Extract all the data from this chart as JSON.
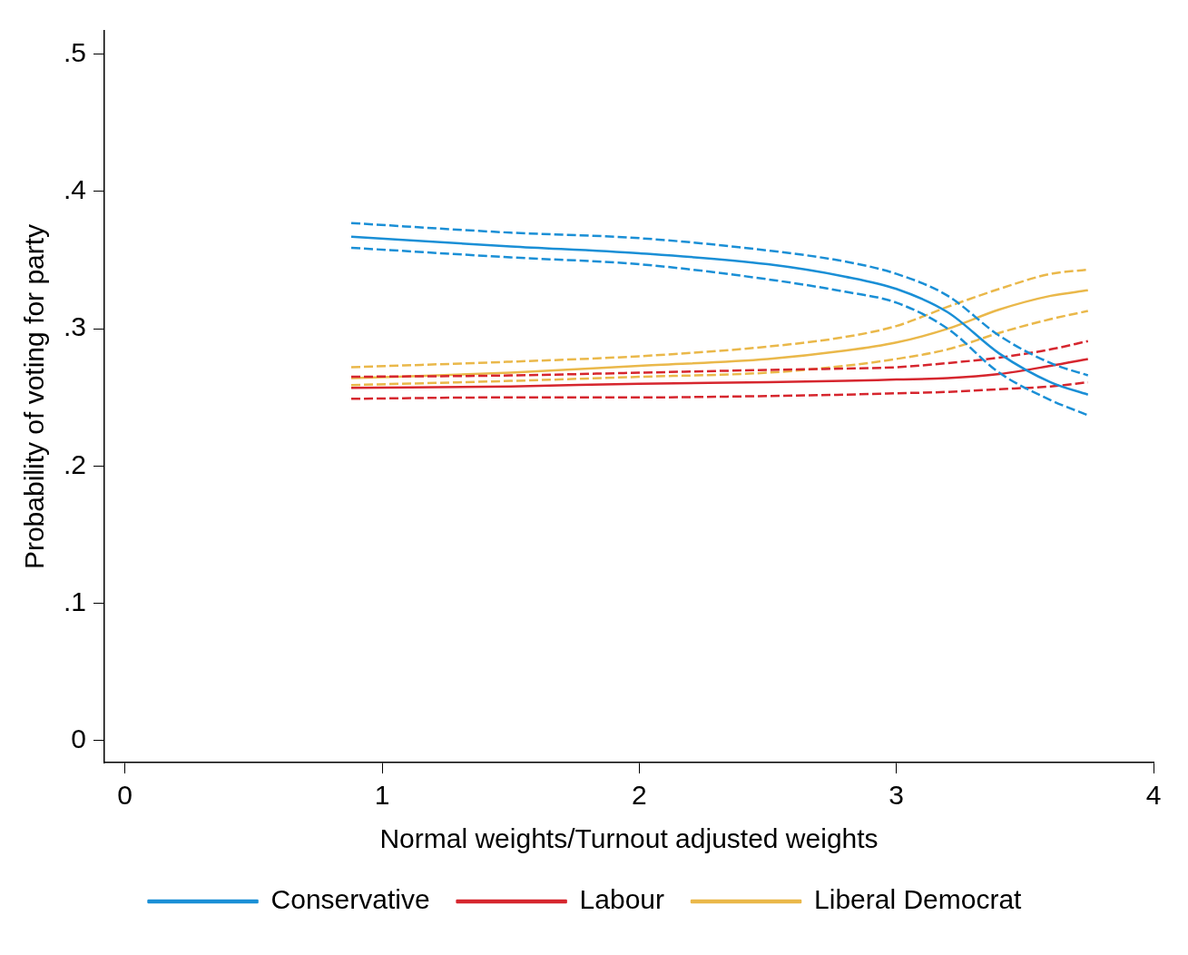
{
  "chart_data": {
    "type": "line",
    "xlabel": "Normal weights/Turnout adjusted weights",
    "ylabel": "Probability of voting for party",
    "x": [
      0.88,
      1.5,
      2,
      2.5,
      2.8,
      3,
      3.2,
      3.4,
      3.6,
      3.745
    ],
    "series": [
      {
        "name": "Conservative",
        "color": "#1a8fd6",
        "values": [
          0.367,
          0.36,
          0.355,
          0.347,
          0.338,
          0.329,
          0.312,
          0.282,
          0.261,
          0.252
        ]
      },
      {
        "color": "#1a8fd6",
        "line_style": "dashed",
        "values": [
          0.359,
          0.352,
          0.347,
          0.336,
          0.327,
          0.319,
          0.3,
          0.268,
          0.248,
          0.237
        ]
      },
      {
        "color": "#1a8fd6",
        "line_style": "dashed",
        "values": [
          0.377,
          0.37,
          0.366,
          0.357,
          0.349,
          0.34,
          0.324,
          0.295,
          0.275,
          0.266
        ]
      },
      {
        "name": "Labour",
        "color": "#d6262e",
        "values": [
          0.257,
          0.258,
          0.26,
          0.261,
          0.262,
          0.263,
          0.264,
          0.267,
          0.273,
          0.278
        ]
      },
      {
        "color": "#d6262e",
        "line_style": "dashed",
        "values": [
          0.249,
          0.25,
          0.25,
          0.251,
          0.252,
          0.253,
          0.254,
          0.256,
          0.258,
          0.261
        ]
      },
      {
        "color": "#d6262e",
        "line_style": "dashed",
        "values": [
          0.265,
          0.266,
          0.268,
          0.27,
          0.271,
          0.272,
          0.275,
          0.279,
          0.285,
          0.291
        ]
      },
      {
        "name": "Liberal Democrat",
        "color": "#eab84a",
        "values": [
          0.264,
          0.268,
          0.273,
          0.278,
          0.284,
          0.29,
          0.3,
          0.314,
          0.324,
          0.328
        ]
      },
      {
        "color": "#eab84a",
        "line_style": "dashed",
        "values": [
          0.259,
          0.262,
          0.265,
          0.268,
          0.273,
          0.278,
          0.285,
          0.297,
          0.307,
          0.313
        ]
      },
      {
        "color": "#eab84a",
        "line_style": "dashed",
        "values": [
          0.272,
          0.276,
          0.28,
          0.287,
          0.294,
          0.302,
          0.316,
          0.329,
          0.34,
          0.343
        ]
      }
    ],
    "xlim": [
      -0.08,
      4
    ],
    "xticks": [
      0,
      1,
      2,
      3,
      4
    ],
    "ylim": [
      -0.016,
      0.517
    ],
    "yticks": [
      {
        "value": 0,
        "label": "0"
      },
      {
        "value": 0.1,
        "label": ".1"
      },
      {
        "value": 0.2,
        "label": ".2"
      },
      {
        "value": 0.3,
        "label": ".3"
      },
      {
        "value": 0.4,
        "label": ".4"
      },
      {
        "value": 0.5,
        "label": ".5"
      }
    ],
    "grid": false,
    "legend": "bottom",
    "marker": "none",
    "line_style": "solid"
  }
}
